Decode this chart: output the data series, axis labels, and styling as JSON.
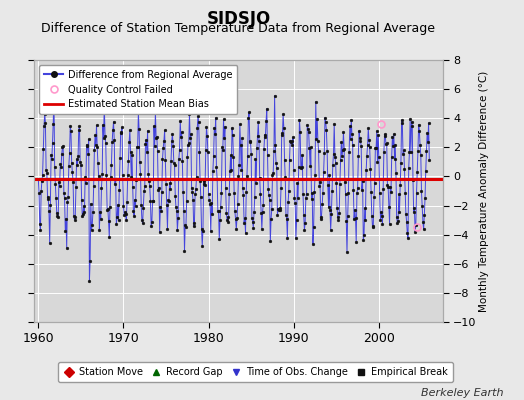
{
  "title": "SIDSJO",
  "subtitle": "Difference of Station Temperature Data from Regional Average",
  "ylabel": "Monthly Temperature Anomaly Difference (°C)",
  "xlim": [
    1959.5,
    2007.5
  ],
  "ylim": [
    -10,
    8
  ],
  "yticks": [
    -10,
    -8,
    -6,
    -4,
    -2,
    0,
    2,
    4,
    6,
    8
  ],
  "xticks": [
    1960,
    1970,
    1980,
    1990,
    2000
  ],
  "bias_value": -0.2,
  "line_color": "#4444dd",
  "marker_color": "#111111",
  "bias_color": "#dd0000",
  "plot_bg_color": "#d8d8d8",
  "fig_bg_color": "#e8e8e8",
  "grid_color": "#ffffff",
  "seed": 12345,
  "n_years": 46,
  "start_year": 1960,
  "amplitude": 3.2,
  "noise_scale": 0.9,
  "qc_fail_color": "#ff99cc",
  "title_fontsize": 12,
  "subtitle_fontsize": 9,
  "tick_fontsize": 8,
  "label_fontsize": 7.5,
  "watermark": "Berkeley Earth",
  "watermark_fontsize": 8
}
